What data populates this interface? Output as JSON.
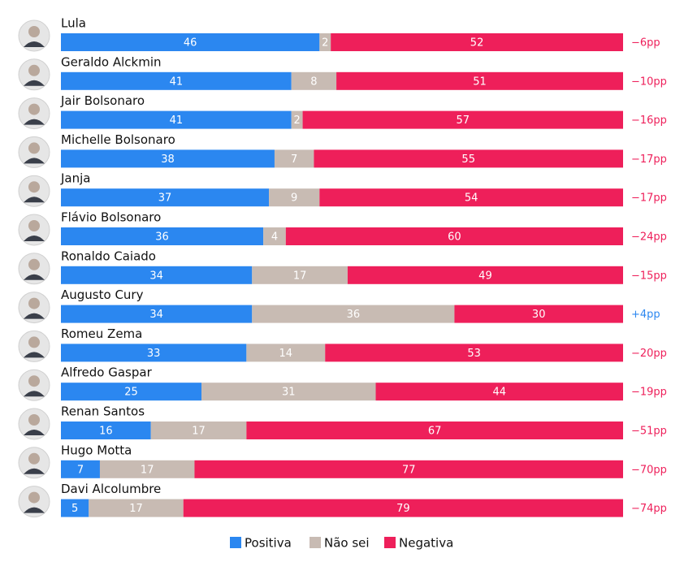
{
  "chart_data": {
    "type": "stacked-bar",
    "categories": [
      "Lula",
      "Geraldo Alckmin",
      "Jair Bolsonaro",
      "Michelle Bolsonaro",
      "Janja",
      "Flávio Bolsonaro",
      "Ronaldo Caiado",
      "Augusto Cury",
      "Romeu Zema",
      "Alfredo Gaspar",
      "Renan Santos",
      "Hugo Motta",
      "Davi Alcolumbre"
    ],
    "series": [
      {
        "name": "Positiva",
        "color": "#2b87f0",
        "values": [
          46,
          41,
          41,
          38,
          37,
          36,
          34,
          34,
          33,
          25,
          16,
          7,
          5
        ]
      },
      {
        "name": "Não sei",
        "color": "#c8bbb3",
        "values": [
          2,
          8,
          2,
          7,
          9,
          4,
          17,
          36,
          14,
          31,
          17,
          17,
          17
        ]
      },
      {
        "name": "Negativa",
        "color": "#ee1f5a",
        "values": [
          52,
          51,
          57,
          55,
          54,
          60,
          49,
          30,
          53,
          44,
          67,
          77,
          79
        ]
      }
    ],
    "net": {
      "values": [
        -6,
        -10,
        -16,
        -17,
        -17,
        -24,
        -15,
        4,
        -20,
        -19,
        -51,
        -70,
        -74
      ],
      "value_labels": [
        "−6pp",
        "−10pp",
        "−16pp",
        "−17pp",
        "−17pp",
        "−24pp",
        "−15pp",
        "+4pp",
        "−20pp",
        "−19pp",
        "−51pp",
        "−70pp",
        "−74pp"
      ]
    },
    "legend": "bottom"
  }
}
